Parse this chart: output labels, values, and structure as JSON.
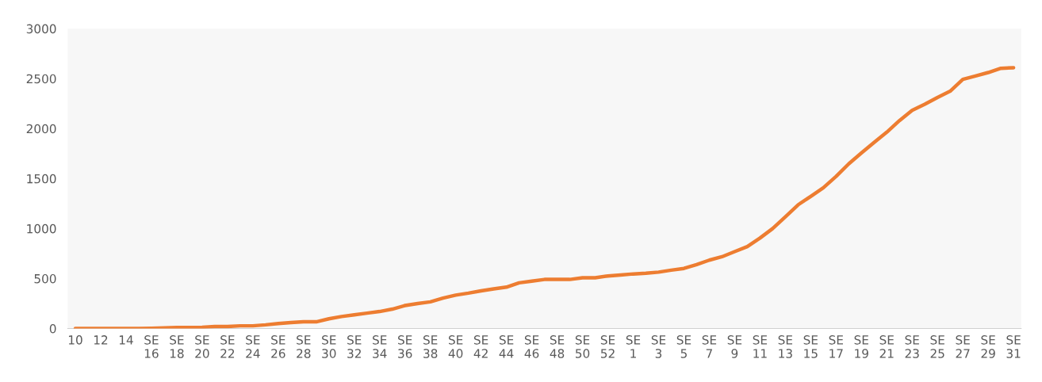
{
  "chart_data": {
    "type": "line",
    "categories": [
      "10",
      null,
      "12",
      null,
      "14",
      null,
      "SE\n16",
      null,
      "SE\n18",
      null,
      "SE\n20",
      null,
      "SE\n22",
      null,
      "SE\n24",
      null,
      "SE\n26",
      null,
      "SE\n28",
      null,
      "SE\n30",
      null,
      "SE\n32",
      null,
      "SE\n34",
      null,
      "SE\n36",
      null,
      "SE\n38",
      null,
      "SE\n40",
      null,
      "SE\n42",
      null,
      "SE\n44",
      null,
      "SE\n46",
      null,
      "SE\n48",
      null,
      "SE\n50",
      null,
      "SE\n52",
      null,
      "SE\n1",
      null,
      "SE\n3",
      null,
      "SE\n5",
      null,
      "SE\n7",
      null,
      "SE\n9",
      null,
      "SE\n11",
      null,
      "SE\n13",
      null,
      "SE\n15",
      null,
      "SE\n17",
      null,
      "SE\n19",
      null,
      "SE\n21",
      null,
      "SE\n23",
      null,
      "SE\n25",
      null,
      "SE\n27",
      null,
      "SE\n29",
      null,
      "SE\n31"
    ],
    "series": [
      {
        "color": "#ed7d31",
        "values": [
          0,
          0,
          0,
          0,
          0,
          0,
          3,
          7,
          10,
          10,
          13,
          20,
          20,
          27,
          27,
          37,
          50,
          60,
          67,
          67,
          97,
          120,
          137,
          154,
          170,
          194,
          230,
          250,
          267,
          304,
          334,
          354,
          377,
          397,
          414,
          457,
          474,
          491,
          491,
          491,
          508,
          508,
          526,
          536,
          546,
          553,
          564,
          584,
          601,
          639,
          684,
          718,
          769,
          820,
          905,
          1000,
          1118,
          1237,
          1322,
          1408,
          1521,
          1647,
          1756,
          1862,
          1964,
          2080,
          2183,
          2244,
          2312,
          2374,
          2493,
          2527,
          2561,
          2603,
          2609
        ]
      }
    ],
    "ylim": [
      0,
      3000
    ],
    "yticks": [
      0,
      500,
      1000,
      1500,
      2000,
      2500,
      3000
    ],
    "grid": false,
    "legend": false,
    "marker": "none",
    "line_style": "solid"
  }
}
